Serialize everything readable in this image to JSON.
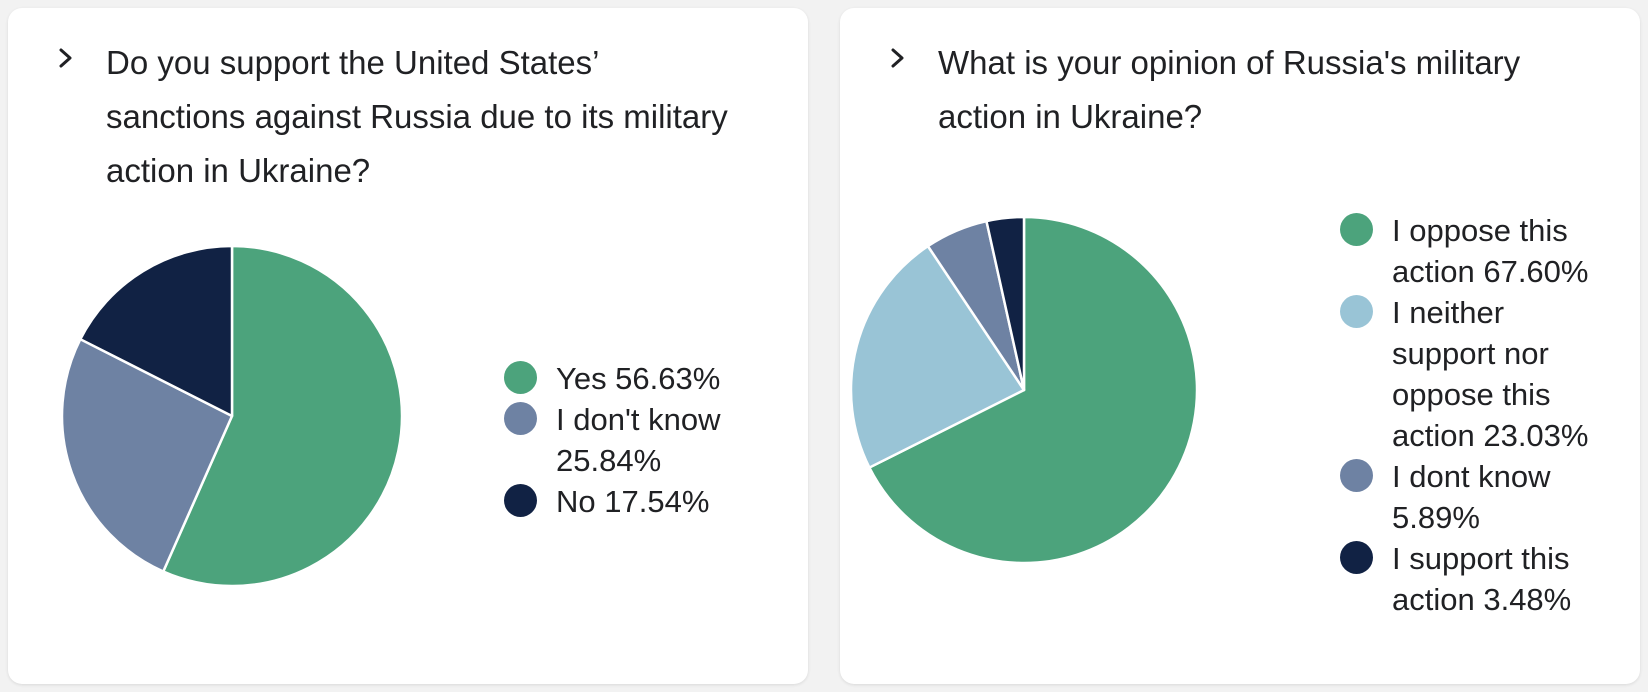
{
  "colors": {
    "green": "#4ca37c",
    "slate": "#6e82a3",
    "navy": "#112244",
    "light_blue": "#99c4d6"
  },
  "icons": {
    "expand": "chevron-right-icon"
  },
  "chart_data": [
    {
      "type": "pie",
      "title": "Do you support the United States’ sanctions against Russia due to its military action in Ukraine?",
      "legend_position": "right",
      "slices": [
        {
          "label": "Yes 56.63%",
          "value": 56.63,
          "color": "#4ca37c"
        },
        {
          "label": "I don't know 25.84%",
          "value": 25.84,
          "color": "#6e82a3"
        },
        {
          "label": "No 17.54%",
          "value": 17.54,
          "color": "#112244"
        }
      ]
    },
    {
      "type": "pie",
      "title": "What is your opinion of Russia's military action in Ukraine?",
      "legend_position": "right",
      "slices": [
        {
          "label": "I oppose this action 67.60%",
          "value": 67.6,
          "color": "#4ca37c"
        },
        {
          "label": "I neither support nor oppose this action 23.03%",
          "value": 23.03,
          "color": "#99c4d6"
        },
        {
          "label": "I dont know 5.89%",
          "value": 5.89,
          "color": "#6e82a3"
        },
        {
          "label": "I support this action 3.48%",
          "value": 3.48,
          "color": "#112244"
        }
      ]
    }
  ]
}
